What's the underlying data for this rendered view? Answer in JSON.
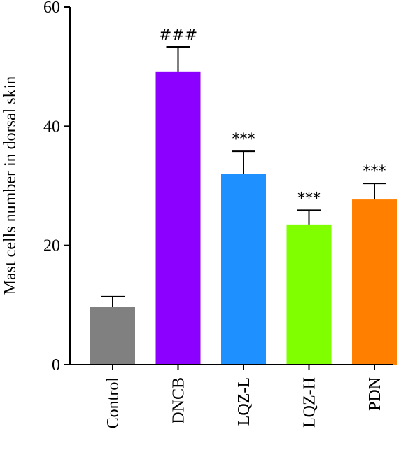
{
  "chart_data": {
    "type": "bar",
    "categories": [
      "Control",
      "DNCB",
      "LQZ-L",
      "LQZ-H",
      "PDN"
    ],
    "values": [
      9.7,
      49.1,
      32.0,
      23.5,
      27.7
    ],
    "errors": [
      1.7,
      4.2,
      3.8,
      2.4,
      2.7
    ],
    "annotations": [
      "",
      "###",
      "***",
      "***",
      "***"
    ],
    "colors": [
      "#808080",
      "#8B00FF",
      "#1E90FF",
      "#7FFF00",
      "#FF7F00"
    ],
    "title": "",
    "xlabel": "",
    "ylabel": "Mast cells number in dorsal skin",
    "ylim": [
      0,
      60
    ],
    "yticks": [
      "0",
      "20",
      "40",
      "60"
    ],
    "grid": false,
    "legend": "none"
  }
}
